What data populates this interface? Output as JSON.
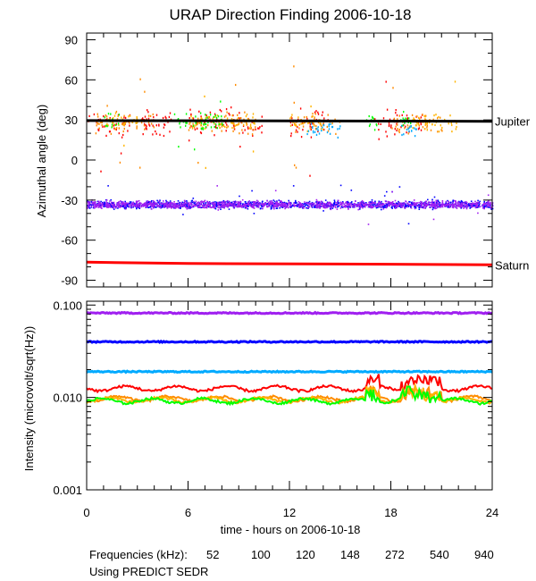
{
  "chart_data": [
    {
      "type": "scatter",
      "title": "URAP Direction Finding  2006-10-18",
      "ylabel": "Azimuthal angle (deg)",
      "xlabel": "",
      "xlim": [
        0,
        24
      ],
      "ylim": [
        -95,
        95
      ],
      "yticks": [
        90,
        60,
        30,
        0,
        -30,
        -60,
        -90
      ],
      "ytick_labels": [
        "90",
        "60",
        "30",
        "0",
        "-30",
        "-60",
        "-90"
      ],
      "reference_lines": [
        {
          "name": "Jupiter",
          "color": "#000000",
          "points": [
            [
              0,
              29.5
            ],
            [
              24,
              29.0
            ]
          ]
        },
        {
          "name": "Saturn",
          "color": "#ff0000",
          "points": [
            [
              0,
              -76.5
            ],
            [
              6,
              -77.5
            ],
            [
              18,
              -78
            ],
            [
              24,
              -78.5
            ]
          ]
        }
      ],
      "series": [
        {
          "name": "52",
          "color": "#ff0000",
          "center": 28,
          "spread": 10,
          "segments": [
            [
              0,
              5.0
            ],
            [
              6,
              10.5
            ],
            [
              12,
              14.5
            ],
            [
              17,
              20
            ]
          ]
        },
        {
          "name": "100",
          "color": "#ff8c00",
          "center": 28,
          "spread": 8,
          "segments": [
            [
              0.5,
              4
            ],
            [
              6,
              10
            ],
            [
              12,
              15
            ],
            [
              18,
              21
            ]
          ]
        },
        {
          "name": "120",
          "color": "#ffb400",
          "center": 29,
          "spread": 7,
          "segments": [
            [
              1,
              3
            ],
            [
              6,
              10
            ],
            [
              12,
              14
            ],
            [
              19,
              22
            ]
          ]
        },
        {
          "name": "148",
          "color": "#00ff00",
          "center": 29,
          "spread": 7,
          "segments": [
            [
              1,
              2
            ],
            [
              5,
              8
            ],
            [
              16.5,
              17.2
            ],
            [
              18.5,
              19.2
            ]
          ]
        },
        {
          "name": "272",
          "color": "#00aaff",
          "center": 25,
          "spread": 8,
          "segments": [
            [
              13,
              15
            ],
            [
              18.5,
              19.5
            ]
          ]
        },
        {
          "name": "540",
          "color": "#0000ff",
          "center": -33,
          "spread": 3,
          "segments": [
            [
              0,
              24
            ]
          ]
        },
        {
          "name": "940",
          "color": "#a020f0",
          "center": -33,
          "spread": 3,
          "segments": [
            [
              0,
              24
            ]
          ]
        }
      ]
    },
    {
      "type": "line",
      "title": "",
      "ylabel": "Intensity (microvolt/sqrt(Hz))",
      "xlabel": "time - hours on 2006-10-18",
      "xlim": [
        0,
        24
      ],
      "xticks": [
        0,
        6,
        12,
        18,
        24
      ],
      "xtick_labels": [
        "0",
        "6",
        "12",
        "18",
        "24"
      ],
      "yscale": "log",
      "ylim": [
        0.001,
        0.11
      ],
      "yticks": [
        0.1,
        0.01,
        0.001
      ],
      "ytick_labels": [
        "0.100",
        "0.010",
        "0.001"
      ],
      "series": [
        {
          "name": "940",
          "color": "#a020f0",
          "level": 0.082
        },
        {
          "name": "540",
          "color": "#0000ff",
          "level": 0.04
        },
        {
          "name": "272",
          "color": "#00aaff",
          "level": 0.019
        },
        {
          "name": "52",
          "color": "#ff0000",
          "level": 0.0125
        },
        {
          "name": "100",
          "color": "#ff8c00",
          "level": 0.0097
        },
        {
          "name": "120",
          "color": "#ffb400",
          "level": 0.0094
        },
        {
          "name": "148",
          "color": "#00ff00",
          "level": 0.0092
        }
      ]
    }
  ],
  "legend": {
    "prefix": "Frequencies (kHz):",
    "items": [
      {
        "label": "52",
        "color": "#ff0000"
      },
      {
        "label": "100",
        "color": "#ff8c00"
      },
      {
        "label": "120",
        "color": "#ffb400"
      },
      {
        "label": "148",
        "color": "#00ff00"
      },
      {
        "label": "272",
        "color": "#00aaff"
      },
      {
        "label": "540",
        "color": "#0000ff"
      },
      {
        "label": "940",
        "color": "#a020f0"
      }
    ],
    "note": "Using PREDICT SEDR"
  }
}
